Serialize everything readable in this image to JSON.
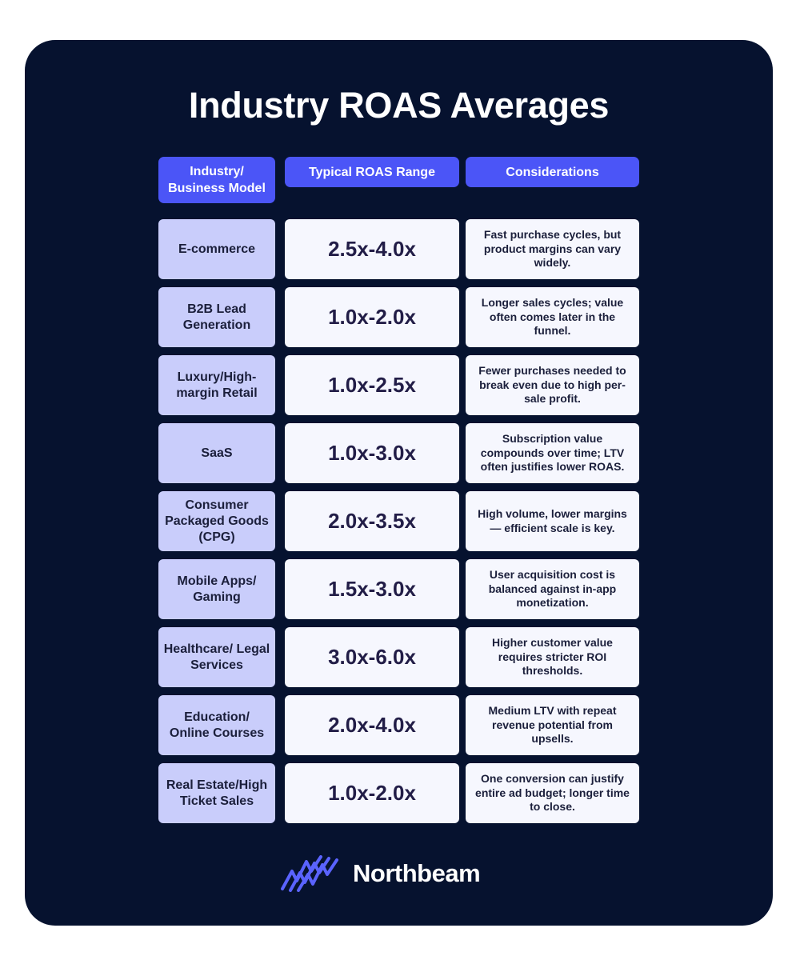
{
  "title": "Industry ROAS Averages",
  "headers": {
    "industry": "Industry/ Business Model",
    "range": "Typical ROAS Range",
    "considerations": "Considerations"
  },
  "rows": [
    {
      "industry": "E-commerce",
      "range": "2.5x-4.0x",
      "considerations": "Fast purchase cycles, but product margins can vary widely."
    },
    {
      "industry": "B2B Lead Generation",
      "range": "1.0x-2.0x",
      "considerations": "Longer sales cycles; value often comes later in the funnel."
    },
    {
      "industry": "Luxury/High-margin Retail",
      "range": "1.0x-2.5x",
      "considerations": "Fewer purchases needed to break even due to high per-sale profit."
    },
    {
      "industry": "SaaS",
      "range": "1.0x-3.0x",
      "considerations": "Subscription value compounds over time; LTV often justifies lower ROAS."
    },
    {
      "industry": "Consumer Packaged Goods (CPG)",
      "range": "2.0x-3.5x",
      "considerations": "High volume, lower margins — efficient scale is key."
    },
    {
      "industry": "Mobile Apps/ Gaming",
      "range": "1.5x-3.0x",
      "considerations": "User acquisition cost is balanced against in-app monetization."
    },
    {
      "industry": "Healthcare/ Legal Services",
      "range": "3.0x-6.0x",
      "considerations": "Higher customer value requires stricter ROI thresholds."
    },
    {
      "industry": "Education/ Online Courses",
      "range": "2.0x-4.0x",
      "considerations": "Medium LTV with repeat revenue potential from upsells."
    },
    {
      "industry": "Real Estate/High Ticket Sales",
      "range": "1.0x-2.0x",
      "considerations": "One conversion can justify entire ad budget; longer time to close."
    }
  ],
  "brand": {
    "name": "Northbeam",
    "logo_icon": "northbeam-logo-icon",
    "colors": {
      "background": "#06122f",
      "accent": "#4b55f7",
      "industry_cell": "#c9cdfb",
      "value_cell": "#f6f7fe"
    }
  }
}
